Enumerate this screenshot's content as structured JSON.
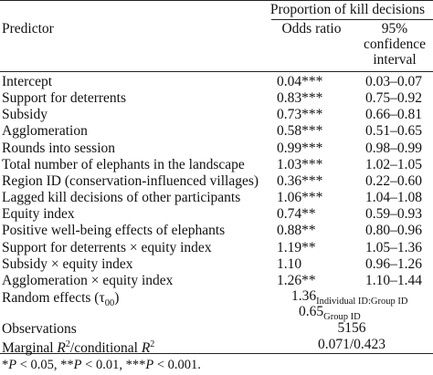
{
  "table": {
    "header": {
      "group_label": "Proportion of kill decisions",
      "col_predictor": "Predictor",
      "col_odds": "Odds ratio",
      "col_ci_lines": [
        "95%",
        "confidence",
        "interval"
      ]
    },
    "rows": [
      {
        "predictor": "Intercept",
        "odds": "0.04***",
        "ci": "0.03–0.07"
      },
      {
        "predictor": "Support for deterrents",
        "odds": "0.83***",
        "ci": "0.75–0.92"
      },
      {
        "predictor": "Subsidy",
        "odds": "0.73***",
        "ci": "0.66–0.81"
      },
      {
        "predictor": "Agglomeration",
        "odds": "0.58***",
        "ci": "0.51–0.65"
      },
      {
        "predictor": "Rounds into session",
        "odds": "0.99***",
        "ci": "0.98–0.99"
      },
      {
        "predictor": "Total number of elephants in the landscape",
        "odds": "1.03***",
        "ci": "1.02–1.05"
      },
      {
        "predictor": "Region ID (conservation-influenced villages)",
        "odds": "0.36***",
        "ci": "0.22–0.60"
      },
      {
        "predictor": "Lagged kill decisions of other participants",
        "odds": "1.06***",
        "ci": "1.04–1.08"
      },
      {
        "predictor": "Equity index",
        "odds": "0.74**",
        "ci": "0.59–0.93"
      },
      {
        "predictor": "Positive well-being effects of elephants",
        "odds": "0.88**",
        "ci": "0.80–0.96"
      },
      {
        "predictor": "Support for deterrents × equity index",
        "odds": "1.19**",
        "ci": "1.05–1.36"
      },
      {
        "predictor": "Subsidy × equity index",
        "odds": "1.10",
        "ci": "0.96–1.26"
      },
      {
        "predictor": "Agglomeration × equity index",
        "odds": "1.26**",
        "ci": "1.10–1.44"
      }
    ],
    "random_effects": {
      "label_pre": "Random effects (τ",
      "label_sub": "00",
      "label_post": ")",
      "value1": "1.36",
      "value1_sub": "Individual ID:Group ID",
      "value2": "0.65",
      "value2_sub": "Group ID"
    },
    "observations": {
      "label": "Observations",
      "value": "5156"
    },
    "r2": {
      "label_r2a": "Marginal ",
      "label_r": "R",
      "label_sq": "2",
      "label_mid": "/conditional ",
      "label_r_b": "R",
      "label_sq_b": "2",
      "value": "0.071/0.423"
    },
    "footnote": "*P < 0.05, **P < 0.01, ***P < 0.001."
  }
}
